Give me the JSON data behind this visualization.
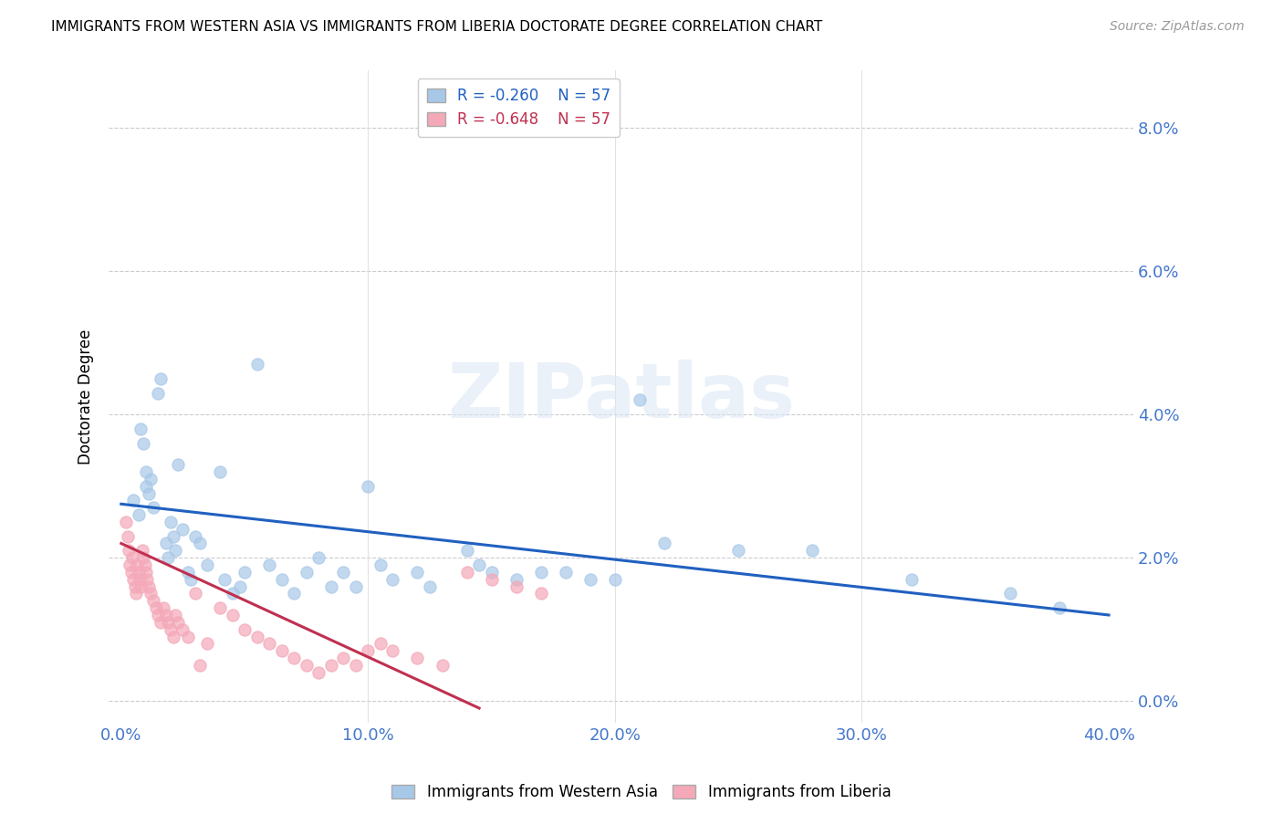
{
  "title": "IMMIGRANTS FROM WESTERN ASIA VS IMMIGRANTS FROM LIBERIA DOCTORATE DEGREE CORRELATION CHART",
  "source": "Source: ZipAtlas.com",
  "ylabel": "Doctorate Degree",
  "ytick_values": [
    0.0,
    2.0,
    4.0,
    6.0,
    8.0
  ],
  "xtick_values": [
    0.0,
    10.0,
    20.0,
    30.0,
    40.0
  ],
  "xlim": [
    -0.5,
    41.0
  ],
  "ylim": [
    -0.3,
    8.8
  ],
  "legend_blue_label": "Immigrants from Western Asia",
  "legend_pink_label": "Immigrants from Liberia",
  "legend_R_blue": "R = -0.260",
  "legend_N_blue": "N = 57",
  "legend_R_pink": "R = -0.648",
  "legend_N_pink": "N = 57",
  "blue_color": "#a8c8e8",
  "pink_color": "#f4a8b8",
  "blue_line_color": "#2060c0",
  "pink_line_color": "#c03050",
  "axis_color": "#4477cc",
  "watermark": "ZIPatlas",
  "blue_scatter_x": [
    0.5,
    0.7,
    0.8,
    0.9,
    1.0,
    1.0,
    1.1,
    1.2,
    1.3,
    1.5,
    1.6,
    1.8,
    1.9,
    2.0,
    2.1,
    2.2,
    2.3,
    2.5,
    2.7,
    2.8,
    3.0,
    3.2,
    3.5,
    4.0,
    4.2,
    4.5,
    4.8,
    5.0,
    5.5,
    6.0,
    6.5,
    7.0,
    7.5,
    8.0,
    8.5,
    9.0,
    9.5,
    10.0,
    10.5,
    11.0,
    12.0,
    12.5,
    14.0,
    14.5,
    15.0,
    16.0,
    17.0,
    18.0,
    19.0,
    20.0,
    21.0,
    22.0,
    25.0,
    28.0,
    32.0,
    36.0,
    38.0
  ],
  "blue_scatter_y": [
    2.8,
    2.6,
    3.8,
    3.6,
    3.2,
    3.0,
    2.9,
    3.1,
    2.7,
    4.3,
    4.5,
    2.2,
    2.0,
    2.5,
    2.3,
    2.1,
    3.3,
    2.4,
    1.8,
    1.7,
    2.3,
    2.2,
    1.9,
    3.2,
    1.7,
    1.5,
    1.6,
    1.8,
    4.7,
    1.9,
    1.7,
    1.5,
    1.8,
    2.0,
    1.6,
    1.8,
    1.6,
    3.0,
    1.9,
    1.7,
    1.8,
    1.6,
    2.1,
    1.9,
    1.8,
    1.7,
    1.8,
    1.8,
    1.7,
    1.7,
    4.2,
    2.2,
    2.1,
    2.1,
    1.7,
    1.5,
    1.3
  ],
  "pink_scatter_x": [
    0.2,
    0.25,
    0.3,
    0.35,
    0.4,
    0.45,
    0.5,
    0.55,
    0.6,
    0.65,
    0.7,
    0.75,
    0.8,
    0.85,
    0.9,
    0.95,
    1.0,
    1.05,
    1.1,
    1.2,
    1.3,
    1.4,
    1.5,
    1.6,
    1.7,
    1.8,
    1.9,
    2.0,
    2.1,
    2.2,
    2.3,
    2.5,
    2.7,
    3.0,
    3.2,
    3.5,
    4.0,
    4.5,
    5.0,
    5.5,
    6.0,
    6.5,
    7.0,
    7.5,
    8.0,
    8.5,
    9.0,
    9.5,
    10.0,
    10.5,
    11.0,
    12.0,
    13.0,
    14.0,
    15.0,
    16.0,
    17.0
  ],
  "pink_scatter_y": [
    2.5,
    2.3,
    2.1,
    1.9,
    1.8,
    2.0,
    1.7,
    1.6,
    1.5,
    1.9,
    1.8,
    1.7,
    1.6,
    2.1,
    2.0,
    1.9,
    1.8,
    1.7,
    1.6,
    1.5,
    1.4,
    1.3,
    1.2,
    1.1,
    1.3,
    1.2,
    1.1,
    1.0,
    0.9,
    1.2,
    1.1,
    1.0,
    0.9,
    1.5,
    0.5,
    0.8,
    1.3,
    1.2,
    1.0,
    0.9,
    0.8,
    0.7,
    0.6,
    0.5,
    0.4,
    0.5,
    0.6,
    0.5,
    0.7,
    0.8,
    0.7,
    0.6,
    0.5,
    1.8,
    1.7,
    1.6,
    1.5
  ],
  "blue_trend_x": [
    0.0,
    40.0
  ],
  "blue_trend_y": [
    2.75,
    1.2
  ],
  "pink_trend_x": [
    0.0,
    14.5
  ],
  "pink_trend_y": [
    2.2,
    -0.1
  ]
}
